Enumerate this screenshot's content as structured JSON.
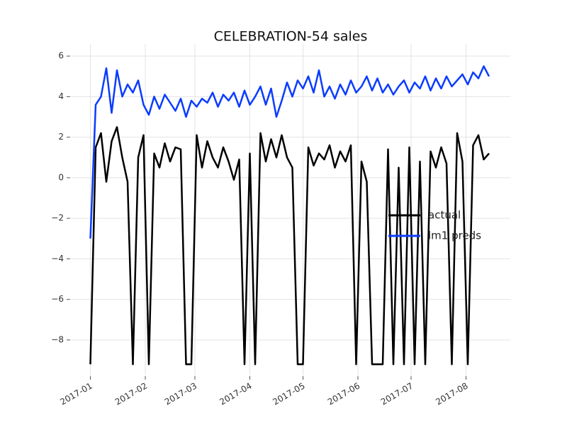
{
  "chart_data": {
    "type": "line",
    "title": "CELEBRATION-54 sales",
    "x": [
      0,
      3,
      6,
      9,
      12,
      15,
      18,
      21,
      24,
      27,
      30,
      33,
      36,
      39,
      42,
      45,
      48,
      51,
      54,
      57,
      60,
      63,
      66,
      69,
      72,
      75,
      78,
      81,
      84,
      87,
      90,
      93,
      96,
      99,
      102,
      105,
      108,
      111,
      114,
      117,
      120,
      123,
      126,
      129,
      132,
      135,
      138,
      141,
      144,
      147,
      150,
      153,
      156,
      159,
      162,
      165,
      168,
      171,
      174,
      177,
      180,
      183,
      186,
      189,
      192,
      195,
      198,
      201,
      204,
      207,
      210,
      213,
      216,
      219,
      222,
      225
    ],
    "series": [
      {
        "name": "actual",
        "color": "#000000",
        "values": [
          -9.2,
          1.5,
          2.2,
          -0.2,
          1.8,
          2.5,
          1.0,
          -0.2,
          -9.2,
          1.0,
          2.1,
          -9.2,
          1.2,
          0.5,
          1.7,
          0.8,
          1.5,
          1.4,
          -9.2,
          -9.2,
          2.1,
          0.5,
          1.8,
          1.0,
          0.5,
          1.5,
          0.8,
          -0.1,
          0.9,
          -9.2,
          1.2,
          -9.2,
          2.2,
          0.8,
          1.9,
          1.0,
          2.1,
          1.0,
          0.5,
          -9.2,
          -9.2,
          1.5,
          0.6,
          1.2,
          0.9,
          1.6,
          0.5,
          1.3,
          0.8,
          1.6,
          -9.2,
          0.8,
          -0.2,
          -9.2,
          -9.2,
          -9.2,
          1.4,
          -9.2,
          0.5,
          -9.2,
          1.5,
          -9.2,
          0.8,
          -9.2,
          1.3,
          0.5,
          1.5,
          0.7,
          -9.2,
          2.2,
          0.8,
          -9.2,
          1.6,
          2.1,
          0.9,
          1.2
        ]
      },
      {
        "name": "lm1 preds",
        "color": "#0a3cff",
        "values": [
          -3.0,
          3.6,
          4.0,
          5.4,
          3.2,
          5.3,
          4.0,
          4.6,
          4.2,
          4.8,
          3.6,
          3.1,
          4.0,
          3.4,
          4.1,
          3.7,
          3.3,
          3.9,
          3.0,
          3.8,
          3.5,
          3.9,
          3.7,
          4.2,
          3.5,
          4.1,
          3.8,
          4.2,
          3.5,
          4.3,
          3.6,
          4.0,
          4.5,
          3.6,
          4.4,
          3.0,
          3.8,
          4.7,
          4.0,
          4.8,
          4.4,
          5.0,
          4.2,
          5.3,
          4.0,
          4.5,
          3.9,
          4.6,
          4.1,
          4.8,
          4.2,
          4.5,
          5.0,
          4.3,
          4.9,
          4.2,
          4.6,
          4.1,
          4.5,
          4.8,
          4.2,
          4.7,
          4.4,
          5.0,
          4.3,
          4.9,
          4.4,
          5.0,
          4.5,
          4.8,
          5.1,
          4.6,
          5.2,
          4.9,
          5.5,
          5.0
        ]
      }
    ],
    "xlim": [
      -11,
      237
    ],
    "xticks": [
      {
        "value": 0,
        "label": "2017-01"
      },
      {
        "value": 31,
        "label": "2017-02"
      },
      {
        "value": 59,
        "label": "2017-03"
      },
      {
        "value": 90,
        "label": "2017-04"
      },
      {
        "value": 120,
        "label": "2017-05"
      },
      {
        "value": 151,
        "label": "2017-06"
      },
      {
        "value": 181,
        "label": "2017-07"
      },
      {
        "value": 212,
        "label": "2017-08"
      }
    ],
    "ylim": [
      -9.75,
      6.6
    ],
    "yticks": [
      {
        "value": -8,
        "label": "−8"
      },
      {
        "value": -6,
        "label": "−6"
      },
      {
        "value": -4,
        "label": "−4"
      },
      {
        "value": -2,
        "label": "−2"
      },
      0,
      2,
      4,
      6
    ],
    "grid": true,
    "legend": "center right"
  }
}
